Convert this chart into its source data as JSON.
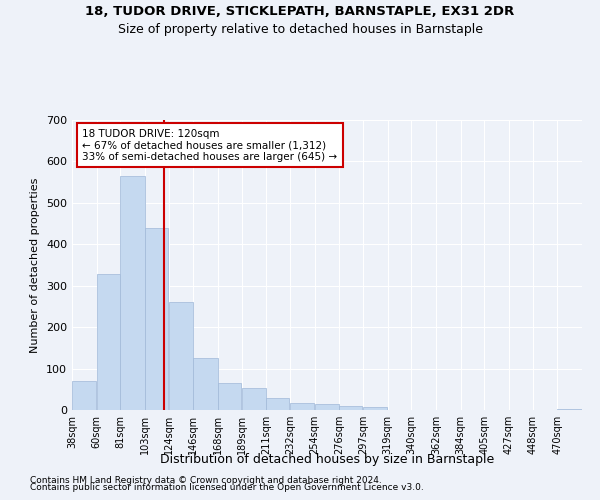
{
  "title1": "18, TUDOR DRIVE, STICKLEPATH, BARNSTAPLE, EX31 2DR",
  "title2": "Size of property relative to detached houses in Barnstaple",
  "xlabel": "Distribution of detached houses by size in Barnstaple",
  "ylabel": "Number of detached properties",
  "footnote1": "Contains HM Land Registry data © Crown copyright and database right 2024.",
  "footnote2": "Contains public sector information licensed under the Open Government Licence v3.0.",
  "annotation_line1": "18 TUDOR DRIVE: 120sqm",
  "annotation_line2": "← 67% of detached houses are smaller (1,312)",
  "annotation_line3": "33% of semi-detached houses are larger (645) →",
  "property_size": 120,
  "bar_color": "#c5d9f0",
  "bar_edge_color": "#a0b8d8",
  "vline_color": "#cc0000",
  "annotation_box_color": "#cc0000",
  "bg_color": "#eef2f9",
  "grid_color": "#ffffff",
  "categories": [
    "38sqm",
    "60sqm",
    "81sqm",
    "103sqm",
    "124sqm",
    "146sqm",
    "168sqm",
    "189sqm",
    "211sqm",
    "232sqm",
    "254sqm",
    "276sqm",
    "297sqm",
    "319sqm",
    "340sqm",
    "362sqm",
    "384sqm",
    "405sqm",
    "427sqm",
    "448sqm",
    "470sqm"
  ],
  "bin_edges": [
    38,
    60,
    81,
    103,
    124,
    146,
    168,
    189,
    211,
    232,
    254,
    276,
    297,
    319,
    340,
    362,
    384,
    405,
    427,
    448,
    470
  ],
  "values": [
    70,
    328,
    565,
    440,
    260,
    125,
    65,
    53,
    30,
    18,
    15,
    10,
    7,
    1,
    1,
    0,
    0,
    0,
    0,
    0,
    3
  ],
  "ylim": [
    0,
    700
  ],
  "yticks": [
    0,
    100,
    200,
    300,
    400,
    500,
    600,
    700
  ]
}
